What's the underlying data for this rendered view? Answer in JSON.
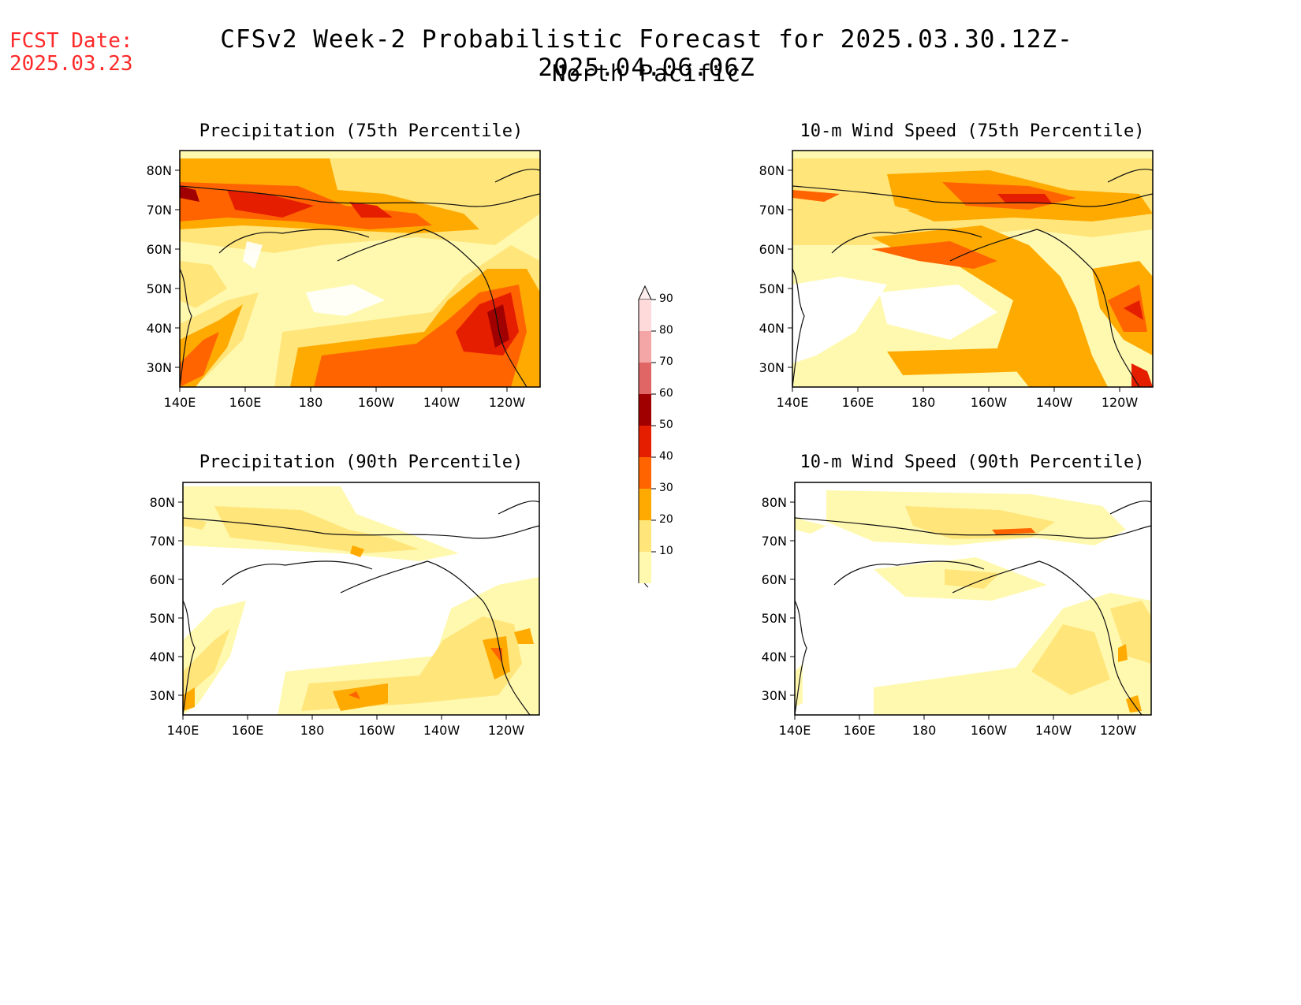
{
  "forecast_date": {
    "label": "FCST Date:",
    "value": "2025.03.23"
  },
  "title": "CFSv2 Week-2 Probabilistic Forecast for 2025.03.30.12Z-2025.04.06.06Z",
  "subtitle": "North Pacific",
  "colorbar": {
    "labels": [
      "90",
      "80",
      "70",
      "60",
      "50",
      "40",
      "30",
      "20",
      "10"
    ],
    "colors": {
      "10": "#fff9b0",
      "20": "#ffe57a",
      "30": "#ffaa00",
      "40": "#ff6400",
      "50": "#e61e00",
      "60": "#a00000",
      "70": "#e06666",
      "80": "#f4a5a5",
      "90": "#ffdada"
    }
  },
  "axes": {
    "x_ticks": [
      "140E",
      "160E",
      "180",
      "160W",
      "140W",
      "120W"
    ],
    "y_ticks": [
      "80N",
      "70N",
      "60N",
      "50N",
      "40N",
      "30N"
    ]
  },
  "panels": [
    {
      "id": "precip75",
      "title": "Precipitation (75th Percentile)"
    },
    {
      "id": "wind75",
      "title": "10-m Wind Speed (75th Percentile)"
    },
    {
      "id": "precip90",
      "title": "Precipitation (90th Percentile)"
    },
    {
      "id": "wind90",
      "title": "10-m Wind Speed (90th Percentile)"
    }
  ]
}
